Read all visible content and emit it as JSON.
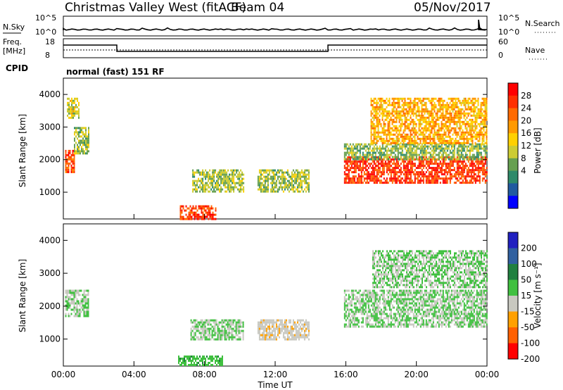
{
  "header": {
    "title": "Christmas Valley West (fitACF)",
    "beam": "Beam 04",
    "date": "05/Nov/2017"
  },
  "top_panels": {
    "nsky_label": "N.Sky",
    "nsearch_label": "N.Search",
    "nsky_ticks": [
      "10^5",
      "10^0"
    ],
    "nsearch_ticks": [
      "10^5",
      "10^0"
    ],
    "freq_label": "Freq.",
    "freq_unit": "[MHz]",
    "freq_ticks": [
      "18",
      "8"
    ],
    "nave_label": "Nave",
    "nave_ticks": [
      "60",
      "0"
    ],
    "cpid_label": "CPID",
    "cpid_value": "normal (fast) 151 RF"
  },
  "chart_data": [
    {
      "type": "heatmap",
      "panel": "power",
      "ylabel": "Slant Range [km]",
      "y_ticks": [
        1000,
        2000,
        3000,
        4000
      ],
      "ylim": [
        180,
        4500
      ],
      "xlim": [
        0,
        24
      ],
      "colorbar": {
        "label": "Power [dB]",
        "ticks": [
          "28",
          "24",
          "20",
          "16",
          "12",
          "8",
          "4"
        ],
        "colors": [
          "#ff0000",
          "#ff3000",
          "#ff6a00",
          "#ff9a00",
          "#ffd000",
          "#cccc33",
          "#66a050",
          "#2e8a6a",
          "#205aa0",
          "#0000ff"
        ]
      },
      "regions": [
        {
          "x": [
            0.1,
            0.6
          ],
          "y": [
            1650,
            2300
          ],
          "v": 26
        },
        {
          "x": [
            0.6,
            1.4
          ],
          "y": [
            2200,
            3000
          ],
          "v": 14
        },
        {
          "x": [
            0.2,
            0.9
          ],
          "y": [
            3300,
            3900
          ],
          "v": 16
        },
        {
          "x": [
            6.6,
            8.6
          ],
          "y": [
            200,
            600
          ],
          "v": 27
        },
        {
          "x": [
            7.3,
            10.2
          ],
          "y": [
            1000,
            1700
          ],
          "v": 14
        },
        {
          "x": [
            11.0,
            13.9
          ],
          "y": [
            1000,
            1700
          ],
          "v": 14
        },
        {
          "x": [
            15.9,
            24.0
          ],
          "y": [
            1300,
            2100
          ],
          "v": 27
        },
        {
          "x": [
            15.9,
            24.0
          ],
          "y": [
            2000,
            2500
          ],
          "v": 13
        },
        {
          "x": [
            17.4,
            24.0
          ],
          "y": [
            2500,
            3900
          ],
          "v": 20
        }
      ]
    },
    {
      "type": "heatmap",
      "panel": "velocity",
      "ylabel": "Slant Range [km]",
      "xlabel": "Time UT",
      "x_ticks": [
        "00:00",
        "04:00",
        "08:00",
        "12:00",
        "16:00",
        "20:00",
        "00:00"
      ],
      "y_ticks": [
        1000,
        2000,
        3000,
        4000
      ],
      "ylim": [
        180,
        4500
      ],
      "xlim": [
        0,
        24
      ],
      "colorbar": {
        "label": "Velocity [m s⁻¹]",
        "ticks": [
          "200",
          "100",
          "50",
          "15",
          "-15",
          "-50",
          "-100",
          "-200"
        ],
        "colors": [
          "#2020c0",
          "#3060a0",
          "#208040",
          "#40c040",
          "#c8c8c0",
          "#ffa000",
          "#ff6000",
          "#ff0000"
        ]
      },
      "regions": [
        {
          "x": [
            0.1,
            1.4
          ],
          "y": [
            1700,
            2500
          ],
          "v": 0
        },
        {
          "x": [
            7.2,
            10.2
          ],
          "y": [
            1000,
            1600
          ],
          "v": 0
        },
        {
          "x": [
            11.0,
            13.9
          ],
          "y": [
            1000,
            1600
          ],
          "v": -30
        },
        {
          "x": [
            6.5,
            9.0
          ],
          "y": [
            200,
            500
          ],
          "v": 30
        },
        {
          "x": [
            15.9,
            24.0
          ],
          "y": [
            1400,
            2500
          ],
          "v": 0
        },
        {
          "x": [
            17.5,
            24.0
          ],
          "y": [
            2600,
            3700
          ],
          "v": 0
        }
      ]
    }
  ]
}
